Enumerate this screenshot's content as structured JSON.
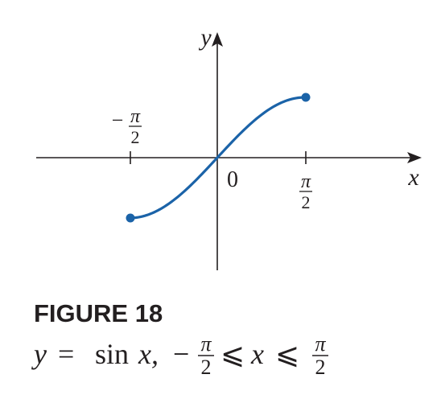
{
  "figure": {
    "axes": {
      "x_label": "x",
      "y_label": "y",
      "origin_label": "0",
      "tick_left": {
        "sign": "−",
        "numerator": "π",
        "denominator": "2"
      },
      "tick_right": {
        "numerator": "π",
        "denominator": "2"
      }
    },
    "caption": {
      "title": "FIGURE 18",
      "formula": {
        "y": "y",
        "eq": "=",
        "sin": "sin",
        "x1": "x,",
        "minus": "−",
        "frac1": {
          "numerator": "π",
          "denominator": "2"
        },
        "le1": "⩽",
        "x2": "x",
        "le2": "⩽",
        "frac2": {
          "numerator": "π",
          "denominator": "2"
        }
      }
    }
  }
}
